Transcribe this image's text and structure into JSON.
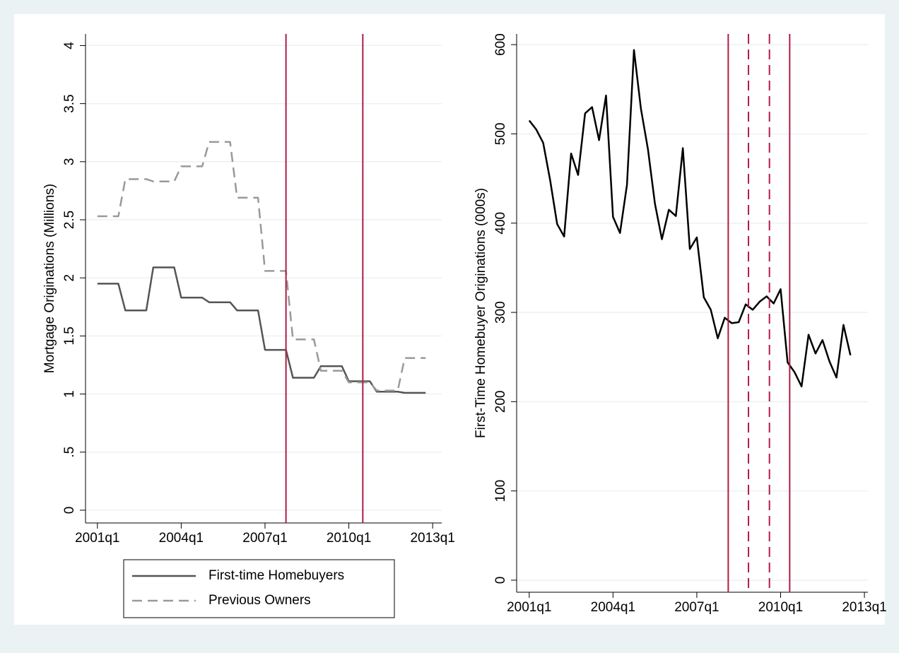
{
  "chart_data": [
    {
      "type": "line",
      "ylabel": "Mortgage Originations (Millions)",
      "x": [
        164,
        165,
        166,
        167,
        168,
        169,
        170,
        171,
        172,
        173,
        174,
        175,
        176,
        177,
        178,
        179,
        180,
        181,
        182,
        183,
        184,
        185,
        186,
        187,
        188,
        189,
        190,
        191,
        192,
        193,
        194,
        195,
        196,
        197,
        198,
        199,
        200,
        201,
        202,
        203,
        204,
        205,
        206,
        207,
        208,
        209,
        210,
        211
      ],
      "series": [
        {
          "name": "First-time Homebuyers",
          "color": "#555555",
          "style": "solid",
          "values": [
            1.95,
            1.95,
            1.95,
            1.95,
            1.72,
            1.72,
            1.72,
            1.72,
            2.09,
            2.09,
            2.09,
            2.09,
            1.83,
            1.83,
            1.83,
            1.83,
            1.79,
            1.79,
            1.79,
            1.79,
            1.72,
            1.72,
            1.72,
            1.72,
            1.38,
            1.38,
            1.38,
            1.38,
            1.14,
            1.14,
            1.14,
            1.14,
            1.24,
            1.24,
            1.24,
            1.24,
            1.11,
            1.11,
            1.11,
            1.11,
            1.02,
            1.02,
            1.02,
            1.02,
            1.01,
            1.01,
            1.01,
            1.01
          ]
        },
        {
          "name": "Previous Owners",
          "color": "#999999",
          "style": "dashed",
          "values": [
            2.53,
            2.53,
            2.53,
            2.53,
            2.85,
            2.85,
            2.85,
            2.85,
            2.83,
            2.83,
            2.83,
            2.83,
            2.96,
            2.96,
            2.96,
            2.96,
            3.17,
            3.17,
            3.17,
            3.17,
            2.69,
            2.69,
            2.69,
            2.69,
            2.06,
            2.06,
            2.06,
            2.06,
            1.47,
            1.47,
            1.47,
            1.47,
            1.2,
            1.2,
            1.2,
            1.2,
            1.1,
            1.1,
            1.1,
            1.1,
            1.03,
            1.03,
            1.03,
            1.03,
            1.31,
            1.31,
            1.31,
            1.31
          ]
        }
      ],
      "reference_lines": [
        {
          "x": 191,
          "style": "solid"
        },
        {
          "x": 202,
          "style": "solid"
        }
      ],
      "reference_color": "#b01c44",
      "xlim": [
        162.3,
        213.3
      ],
      "ylim": [
        -0.11,
        4.1
      ],
      "xticks": [
        {
          "value": 164,
          "label": "2001q1"
        },
        {
          "value": 176,
          "label": "2004q1"
        },
        {
          "value": 188,
          "label": "2007q1"
        },
        {
          "value": 200,
          "label": "2010q1"
        },
        {
          "value": 212,
          "label": "2013q1"
        }
      ],
      "yticks": [
        0,
        {
          "value": 0.5,
          "label": ".5"
        },
        1,
        1.5,
        2,
        2.5,
        3,
        3.5,
        4
      ],
      "grid": true,
      "legend": "bottom"
    },
    {
      "type": "line",
      "ylabel": "First-Time Homebuyer Originations (000s)",
      "x": [
        164,
        165,
        166,
        167,
        168,
        169,
        170,
        171,
        172,
        173,
        174,
        175,
        176,
        177,
        178,
        179,
        180,
        181,
        182,
        183,
        184,
        185,
        186,
        187,
        188,
        189,
        190,
        191,
        192,
        193,
        194,
        195,
        196,
        197,
        198,
        199,
        200,
        201,
        202,
        203,
        204,
        205,
        206,
        207,
        208,
        209,
        210
      ],
      "series": [
        {
          "color": "#000000",
          "style": "solid",
          "values": [
            515,
            505,
            490,
            448,
            399,
            385,
            478,
            454,
            523,
            530,
            493,
            543,
            407,
            389,
            443,
            594,
            528,
            483,
            422,
            382,
            415,
            408,
            484,
            371,
            384,
            317,
            303,
            271,
            294,
            288,
            289,
            309,
            303,
            312,
            318,
            310,
            326,
            244,
            233,
            217,
            275,
            254,
            269,
            245,
            227,
            286,
            252
          ]
        }
      ],
      "reference_lines": [
        {
          "x": 192.5,
          "style": "solid"
        },
        {
          "x": 195.4,
          "style": "dashed"
        },
        {
          "x": 198.4,
          "style": "dashed"
        },
        {
          "x": 201.3,
          "style": "solid"
        }
      ],
      "reference_color": "#b01c44",
      "xlim": [
        162.2,
        212.5
      ],
      "ylim": [
        -13.5,
        612
      ],
      "xticks": [
        {
          "value": 164,
          "label": "2001q1"
        },
        {
          "value": 176,
          "label": "2004q1"
        },
        {
          "value": 188,
          "label": "2007q1"
        },
        {
          "value": 200,
          "label": "2010q1"
        },
        {
          "value": 212,
          "label": "2013q1"
        }
      ],
      "yticks": [
        0,
        100,
        200,
        300,
        400,
        500,
        600
      ],
      "grid": true
    }
  ]
}
